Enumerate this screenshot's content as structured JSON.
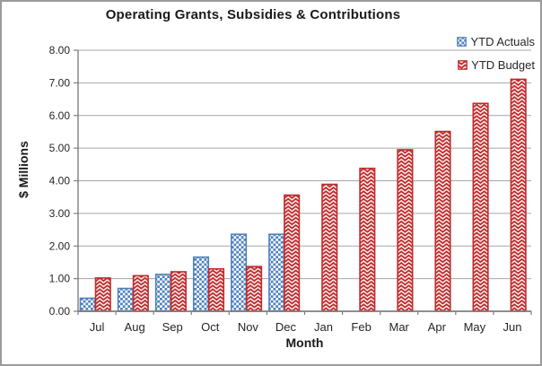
{
  "chart_data": {
    "type": "bar",
    "title": "Operating Grants, Subsidies & Contributions",
    "xlabel": "Month",
    "ylabel": "$ Millions",
    "categories": [
      "Jul",
      "Aug",
      "Sep",
      "Oct",
      "Nov",
      "Dec",
      "Jan",
      "Feb",
      "Mar",
      "Apr",
      "May",
      "Jun"
    ],
    "series": [
      {
        "name": "YTD Actuals",
        "color": "#4f81bd",
        "pattern": "checker",
        "values": [
          0.4,
          0.7,
          1.13,
          1.66,
          2.36,
          2.36,
          null,
          null,
          null,
          null,
          null,
          null
        ]
      },
      {
        "name": "YTD Budget",
        "color": "#c02b2c",
        "pattern": "shingle",
        "values": [
          1.02,
          1.09,
          1.21,
          1.3,
          1.37,
          3.56,
          3.89,
          4.38,
          4.95,
          5.51,
          6.37,
          7.11
        ]
      }
    ],
    "ylim": [
      0,
      8
    ],
    "ytick_step": 1,
    "ytick_labels": [
      "0.00",
      "1.00",
      "2.00",
      "3.00",
      "4.00",
      "5.00",
      "6.00",
      "7.00",
      "8.00"
    ],
    "grid": true,
    "legend_position": "top-right"
  },
  "colors": {
    "gridline": "#a6a6a6",
    "axis": "#7f7f7f",
    "text": "#262626",
    "background": "#ffffff"
  }
}
